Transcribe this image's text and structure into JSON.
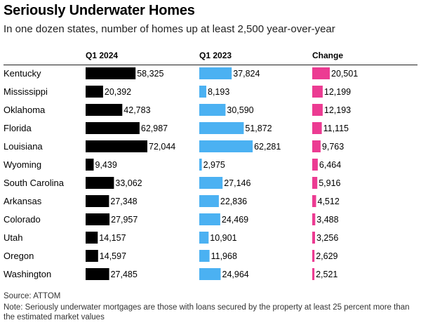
{
  "header": {
    "title": "Seriously Underwater Homes",
    "subtitle": "In one dozen states, number of homes up at least 2,500 year-over-year"
  },
  "chart_data": {
    "type": "bar",
    "title": "Seriously Underwater Homes",
    "subtitle": "In one dozen states, number of homes up at least 2,500 year-over-year",
    "categories": [
      "Kentucky",
      "Mississippi",
      "Oklahoma",
      "Florida",
      "Louisiana",
      "Wyoming",
      "South Carolina",
      "Arkansas",
      "Colorado",
      "Utah",
      "Oregon",
      "Washington"
    ],
    "series": [
      {
        "name": "Q1 2024",
        "color": "#000000",
        "values": [
          58325,
          20392,
          42783,
          62987,
          72044,
          9439,
          33062,
          27348,
          27957,
          14157,
          14597,
          27485
        ],
        "labels": [
          "58,325",
          "20,392",
          "42,783",
          "62,987",
          "72,044",
          "9,439",
          "33,062",
          "27,348",
          "27,957",
          "14,157",
          "14,597",
          "27,485"
        ]
      },
      {
        "name": "Q1 2023",
        "color": "#4bb1f2",
        "values": [
          37824,
          8193,
          30590,
          51872,
          62281,
          2975,
          27146,
          22836,
          24469,
          10901,
          11968,
          24964
        ],
        "labels": [
          "37,824",
          "8,193",
          "30,590",
          "51,872",
          "62,281",
          "2,975",
          "27,146",
          "22,836",
          "24,469",
          "10,901",
          "11,968",
          "24,964"
        ]
      },
      {
        "name": "Change",
        "color": "#ec3b92",
        "values": [
          20501,
          12199,
          12193,
          11115,
          9763,
          6464,
          5916,
          4512,
          3488,
          3256,
          2629,
          2521
        ],
        "labels": [
          "20,501",
          "12,199",
          "12,193",
          "11,115",
          "9,763",
          "6,464",
          "5,916",
          "4,512",
          "3,488",
          "3,256",
          "2,629",
          "2,521"
        ]
      }
    ],
    "xlabel": "",
    "ylabel": ""
  },
  "footer": {
    "source": "Source: ATTOM",
    "note": "Note: Seriously underwater mortgages are those with loans secured by the property at least 25 percent more than the estimated market values"
  }
}
